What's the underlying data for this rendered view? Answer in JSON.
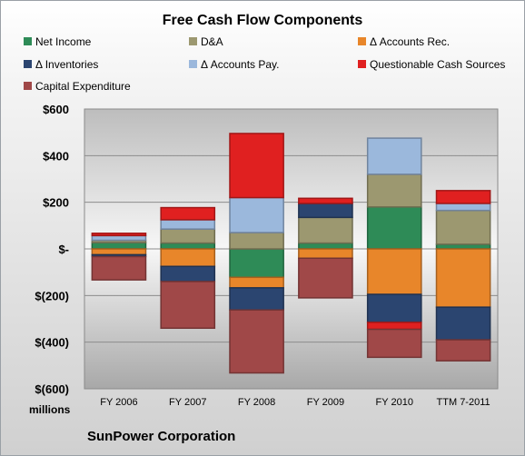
{
  "chart_data": {
    "type": "stacked-bar",
    "title": "Free Cash Flow Components",
    "categories": [
      "FY 2006",
      "FY 2007",
      "FY 2008",
      "FY 2009",
      "FY 2010",
      "TTM 7-2011"
    ],
    "units_label": "millions",
    "source_label": "SunPower Corporation",
    "ylim": [
      -600,
      600
    ],
    "yticks": [
      -600,
      -400,
      -200,
      0,
      200,
      400,
      600
    ],
    "ytick_labels": [
      "$(600)",
      "$(400)",
      "$(200)",
      "$-",
      "$200",
      "$400",
      "$600"
    ],
    "grid": true,
    "legend_position": "top",
    "series": [
      {
        "name": "Net Income",
        "color": "#2e8b57",
        "values": [
          27,
          25,
          -122,
          25,
          180,
          20
        ]
      },
      {
        "name": "D&A",
        "color": "#9c9870",
        "values": [
          10,
          60,
          70,
          110,
          140,
          145
        ]
      },
      {
        "name": "Δ Accounts Rec.",
        "color": "#e8862a",
        "values": [
          -25,
          -75,
          -45,
          -40,
          -195,
          -250
        ]
      },
      {
        "name": "Δ Inventories",
        "color": "#2b4570",
        "values": [
          -8,
          -65,
          -95,
          60,
          -120,
          -140
        ]
      },
      {
        "name": "Δ Accounts Pay.",
        "color": "#9bb8dc",
        "values": [
          20,
          40,
          150,
          0,
          155,
          30
        ]
      },
      {
        "name": "Questionable Cash Sources",
        "color": "#e02020",
        "values": [
          10,
          52,
          275,
          22,
          -30,
          55
        ]
      },
      {
        "name": "Capital Expenditure",
        "color": "#a04848",
        "values": [
          -100,
          -200,
          -270,
          -170,
          -120,
          -90
        ]
      }
    ]
  }
}
